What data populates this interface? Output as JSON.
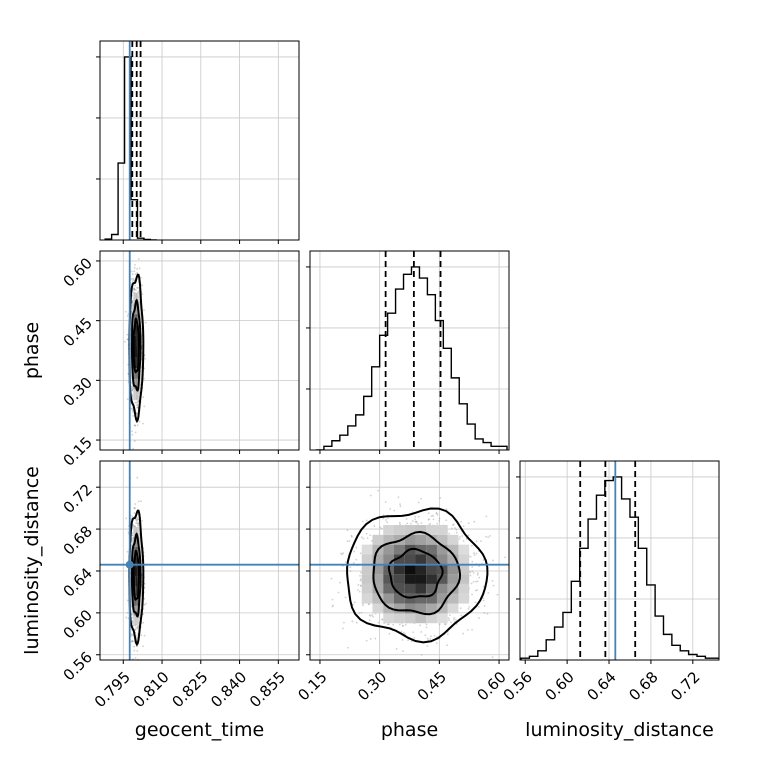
{
  "chart_data": {
    "type": "corner",
    "parameters": [
      "geocent_time",
      "phase",
      "luminosity_distance"
    ],
    "truths": {
      "geocent_time": 0.7975,
      "phase": null,
      "luminosity_distance": 0.646
    },
    "colors": {
      "truth": "#4682b4",
      "hist": "#000000",
      "grid": "#c8c8c8",
      "scatter": "#9a9a9a"
    },
    "grid": true,
    "ranges": {
      "geocent_time": [
        0.786,
        0.863
      ],
      "phase": [
        0.125,
        0.625
      ],
      "luminosity_distance": [
        0.555,
        0.745
      ]
    },
    "ticks": {
      "geocent_time": [
        0.795,
        0.81,
        0.825,
        0.84,
        0.855
      ],
      "phase": [
        0.15,
        0.3,
        0.45,
        0.6
      ],
      "luminosity_distance": [
        0.56,
        0.6,
        0.64,
        0.68,
        0.72
      ]
    },
    "tick_labels": {
      "geocent_time": [
        "0.795",
        "0.810",
        "0.825",
        "0.840",
        "0.855"
      ],
      "phase": [
        "0.15",
        "0.30",
        "0.45",
        "0.60"
      ],
      "luminosity_distance": [
        "0.56",
        "0.60",
        "0.64",
        "0.68",
        "0.72"
      ]
    },
    "marginals": [
      {
        "param": "geocent_time",
        "bin_edges": [
          0.788,
          0.7905,
          0.793,
          0.7955,
          0.798,
          0.8005,
          0.803,
          0.8055,
          0.808
        ],
        "counts": [
          0.005,
          0.03,
          0.42,
          1.0,
          0.22,
          0.01,
          0.003,
          0.0
        ],
        "quantiles": [
          0.7985,
          0.8002,
          0.8017
        ]
      },
      {
        "param": "phase",
        "bin_edges": [
          0.14,
          0.16,
          0.18,
          0.2,
          0.22,
          0.24,
          0.26,
          0.28,
          0.3,
          0.32,
          0.34,
          0.36,
          0.38,
          0.4,
          0.42,
          0.44,
          0.46,
          0.48,
          0.5,
          0.52,
          0.54,
          0.56,
          0.58,
          0.6,
          0.62
        ],
        "counts": [
          0.0,
          0.02,
          0.05,
          0.08,
          0.13,
          0.19,
          0.29,
          0.45,
          0.62,
          0.74,
          0.87,
          0.95,
          0.99,
          0.93,
          0.84,
          0.7,
          0.55,
          0.39,
          0.25,
          0.14,
          0.06,
          0.04,
          0.02,
          0.02
        ],
        "quantiles": [
          0.315,
          0.386,
          0.453
        ]
      },
      {
        "param": "luminosity_distance",
        "bin_edges": [
          0.556,
          0.564,
          0.572,
          0.58,
          0.588,
          0.596,
          0.604,
          0.612,
          0.62,
          0.628,
          0.636,
          0.644,
          0.652,
          0.66,
          0.668,
          0.676,
          0.684,
          0.692,
          0.7,
          0.708,
          0.716,
          0.724,
          0.732,
          0.74,
          0.748
        ],
        "counts": [
          0.01,
          0.02,
          0.05,
          0.11,
          0.18,
          0.26,
          0.43,
          0.61,
          0.77,
          0.9,
          0.98,
          1.0,
          0.88,
          0.78,
          0.61,
          0.41,
          0.24,
          0.14,
          0.08,
          0.05,
          0.03,
          0.02,
          0.01,
          0.01
        ],
        "quantiles": [
          0.6125,
          0.6365,
          0.665
        ]
      }
    ],
    "joints": [
      {
        "x": "geocent_time",
        "y": "phase",
        "center": [
          0.8,
          0.385
        ],
        "sd": [
          0.0011,
          0.072
        ],
        "contour_levels": [
          0.34,
          0.68,
          0.95
        ]
      },
      {
        "x": "geocent_time",
        "y": "luminosity_distance",
        "center": [
          0.8,
          0.635
        ],
        "sd": [
          0.0011,
          0.025
        ],
        "contour_levels": [
          0.34,
          0.68,
          0.95
        ]
      },
      {
        "x": "phase",
        "y": "luminosity_distance",
        "center": [
          0.39,
          0.637
        ],
        "sd": [
          0.072,
          0.025
        ],
        "contour_levels": [
          0.34,
          0.68,
          0.95
        ]
      }
    ]
  }
}
